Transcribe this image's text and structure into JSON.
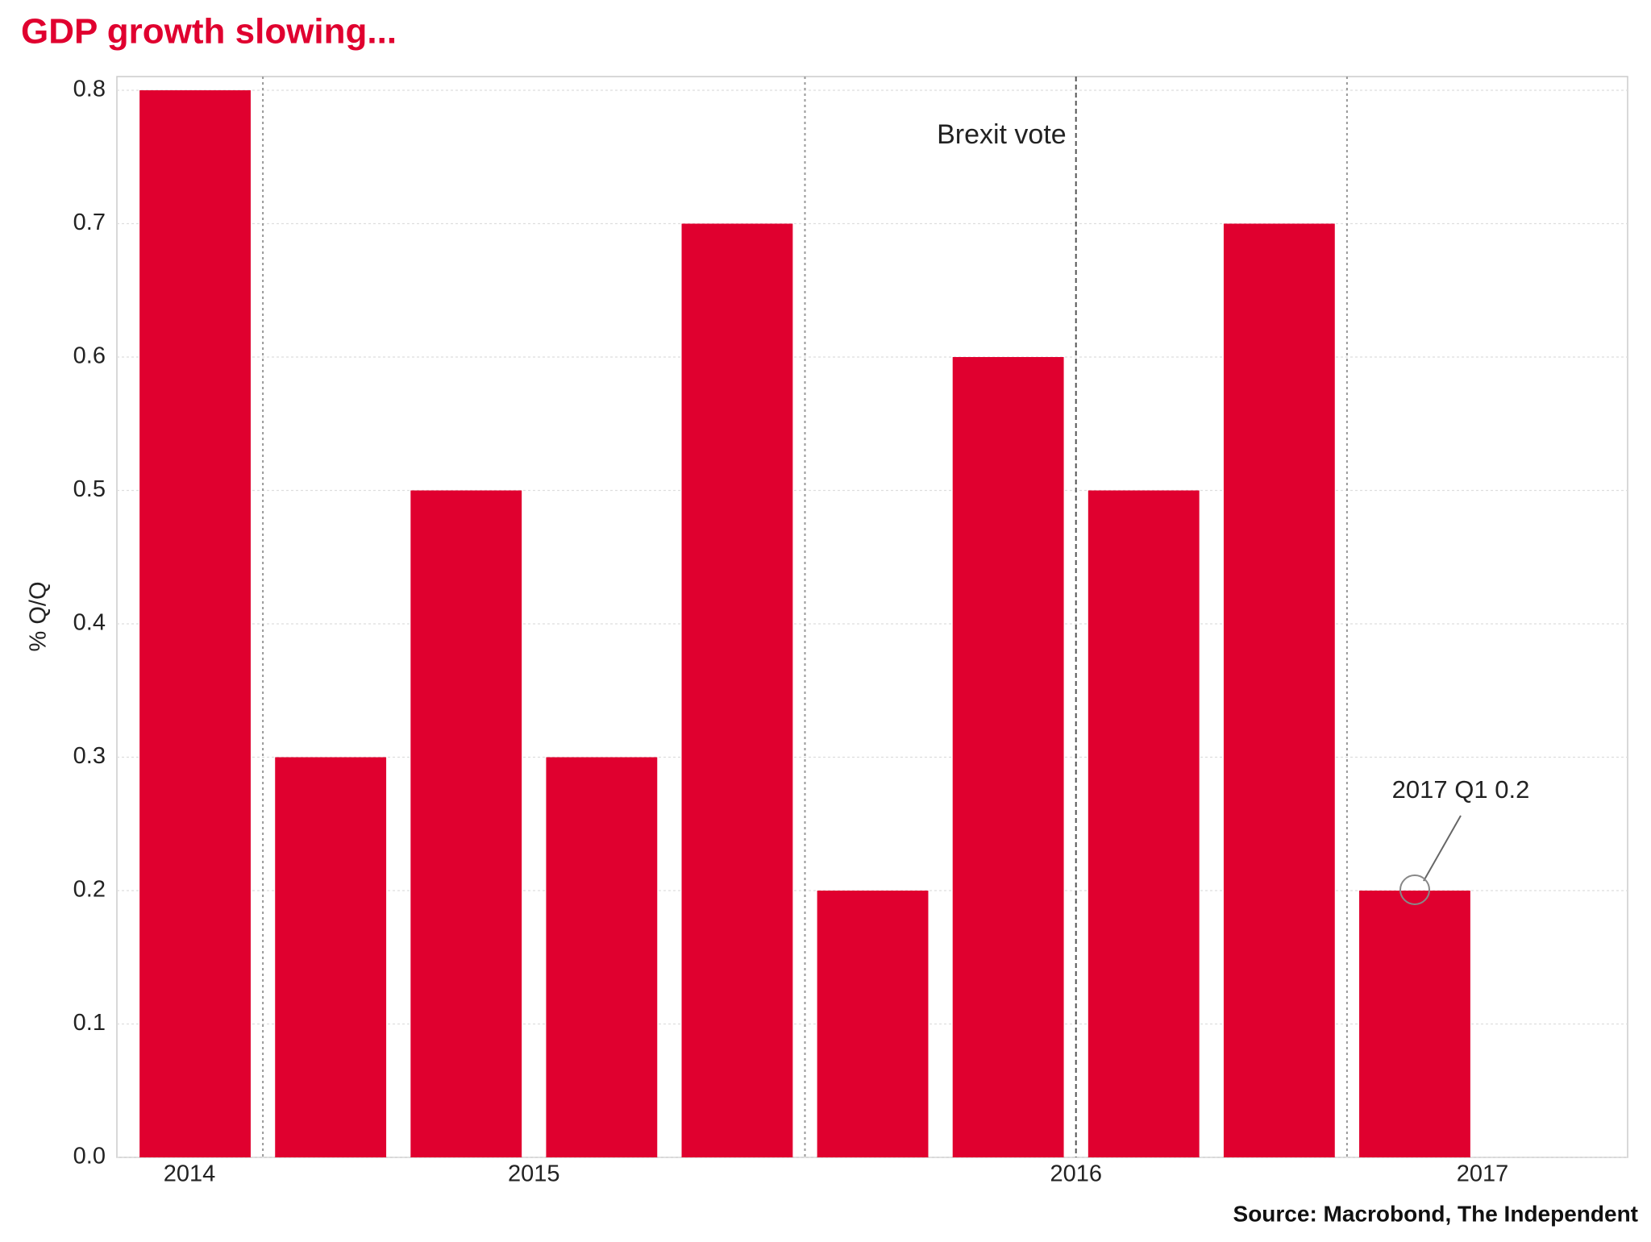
{
  "chart_data": {
    "type": "bar",
    "title": "GDP growth slowing...",
    "y_label": "% Q/Q",
    "categories": [
      "2014",
      null,
      null,
      "2015",
      null,
      null,
      null,
      "2016",
      null,
      null,
      "2017"
    ],
    "values": [
      0.8,
      0.3,
      0.5,
      0.3,
      0.7,
      0.2,
      0.6,
      0.5,
      0.7,
      0.2,
      null
    ],
    "color": "#e0002f",
    "ylim": [
      0,
      0.8
    ],
    "yticks": [
      {
        "value": 0,
        "label": "0.0"
      },
      0.1,
      0.2,
      0.3,
      0.4,
      0.5,
      0.6,
      0.7,
      0.8
    ],
    "grid": true,
    "annotations": [
      "Brexit vote",
      "2017 Q1 0.2"
    ],
    "source": "Source: Macrobond, The Independent"
  }
}
